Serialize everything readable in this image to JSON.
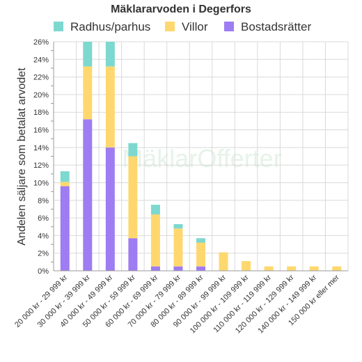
{
  "chart_data": {
    "type": "bar",
    "stacked": true,
    "title": "Mäklararvoden i Degerfors",
    "ylabel": "Andelen säljare som betalat arvodet",
    "xlabel": "",
    "ylim": [
      0,
      26
    ],
    "ytick_step": 2,
    "y_unit": "%",
    "grid": true,
    "legend_position": "top",
    "watermark": "MäklarOfferter",
    "categories": [
      "20 000 kr - 29 999 kr",
      "30 000 kr - 39 999 kr",
      "40 000 kr - 49 999 kr",
      "50 000 kr - 59 999 kr",
      "60 000 kr - 69 999 kr",
      "70 000 kr - 79 999 kr",
      "80 000 kr - 89 999 kr",
      "90 000 kr - 99 999 kr",
      "100 000 kr - 109 999 kr",
      "110 000 kr - 119 999 kr",
      "120 000 kr - 129 999 kr",
      "140 000 kr - 149 999 kr",
      "150 000 kr eller mer"
    ],
    "series": [
      {
        "name": "Bostadsrätter",
        "color": "#9e7cf2",
        "values": [
          9.6,
          17.2,
          14.0,
          3.7,
          0.5,
          0.5,
          0.5,
          0,
          0,
          0,
          0,
          0,
          0
        ]
      },
      {
        "name": "Villor",
        "color": "#fed86f",
        "values": [
          0.5,
          6.0,
          9.2,
          9.3,
          5.9,
          4.3,
          2.7,
          2.1,
          1.1,
          0.5,
          0.5,
          0.5,
          0.5
        ]
      },
      {
        "name": "Radhus/parhus",
        "color": "#7dd8d0",
        "values": [
          1.2,
          2.8,
          2.8,
          1.5,
          1.1,
          0.5,
          0.5,
          0,
          0,
          0,
          0,
          0,
          0
        ]
      }
    ],
    "legend_order": [
      "Radhus/parhus",
      "Villor",
      "Bostadsrätter"
    ]
  }
}
